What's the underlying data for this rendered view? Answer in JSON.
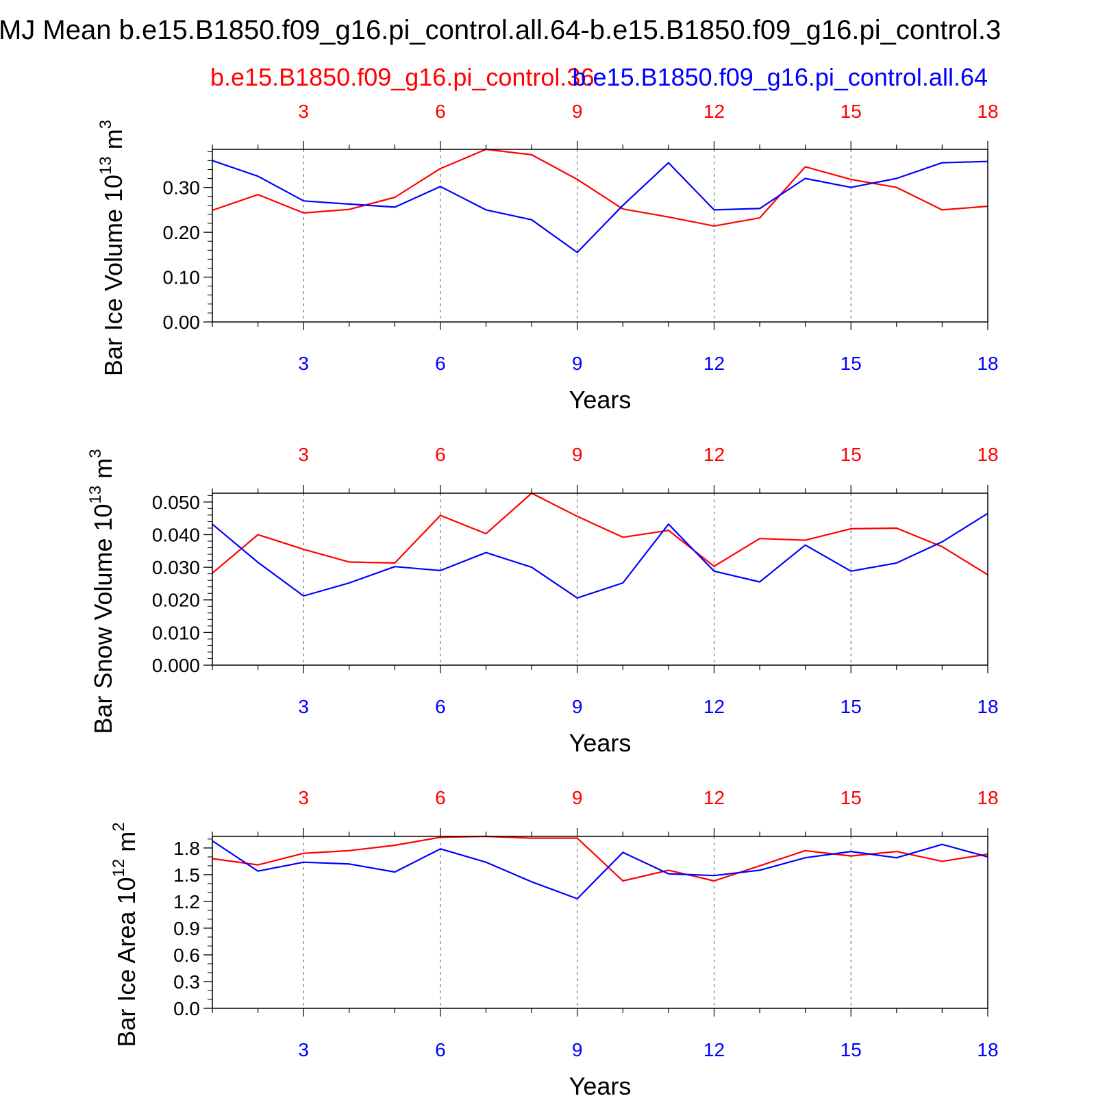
{
  "figure": {
    "title": "MJ Mean b.e15.B1850.f09_g16.pi_control.all.64-b.e15.B1850.f09_g16.pi_control.3",
    "legend": {
      "red_label": "b.e15.B1850.f09_g16.pi_control.36",
      "blue_label": "b.e15.B1850.f09_g16.pi_control.all.64"
    }
  },
  "chart_data": [
    {
      "type": "line",
      "ylabel_prefix": "Bar Ice Volume 10",
      "ylabel_exp": "13",
      "ylabel_unit": " m",
      "ylabel_unit_exp": "3",
      "xlabel": "Years",
      "xlim": [
        1,
        18
      ],
      "ylim": [
        0,
        0.385
      ],
      "xticks": [
        3,
        6,
        9,
        12,
        15,
        18
      ],
      "yticks": [
        0,
        0.1,
        0.2,
        0.3
      ],
      "ytick_labels": [
        "0.00",
        "0.10",
        "0.20",
        "0.30"
      ],
      "yminor_step": 0.02,
      "grid": "vertical dashed at major x ticks",
      "x": [
        1,
        2,
        3,
        4,
        5,
        6,
        7,
        8,
        9,
        10,
        11,
        12,
        13,
        14,
        15,
        16,
        17,
        18
      ],
      "series": [
        {
          "name": "b.e15.B1850.f09_g16.pi_control.36",
          "color": "#ff0000",
          "values": [
            0.249,
            0.284,
            0.243,
            0.251,
            0.278,
            0.342,
            0.385,
            0.373,
            0.318,
            0.252,
            0.234,
            0.214,
            0.232,
            0.346,
            0.318,
            0.3,
            0.25,
            0.258
          ]
        },
        {
          "name": "b.e15.B1850.f09_g16.pi_control.all.64",
          "color": "#0000ff",
          "values": [
            0.36,
            0.325,
            0.27,
            0.263,
            0.256,
            0.302,
            0.25,
            0.228,
            0.155,
            0.26,
            0.355,
            0.25,
            0.253,
            0.32,
            0.3,
            0.32,
            0.355,
            0.358
          ]
        }
      ]
    },
    {
      "type": "line",
      "ylabel_prefix": "Bar Snow Volume 10",
      "ylabel_exp": "13",
      "ylabel_unit": " m",
      "ylabel_unit_exp": "3",
      "xlabel": "Years",
      "xlim": [
        1,
        18
      ],
      "ylim": [
        0,
        0.0527
      ],
      "xticks": [
        3,
        6,
        9,
        12,
        15,
        18
      ],
      "yticks": [
        0,
        0.01,
        0.02,
        0.03,
        0.04,
        0.05
      ],
      "ytick_labels": [
        "0.000",
        "0.010",
        "0.020",
        "0.030",
        "0.040",
        "0.050"
      ],
      "yminor_step": 0.002,
      "grid": "vertical dashed at major x ticks",
      "x": [
        1,
        2,
        3,
        4,
        5,
        6,
        7,
        8,
        9,
        10,
        11,
        12,
        13,
        14,
        15,
        16,
        17,
        18
      ],
      "series": [
        {
          "name": "b.e15.B1850.f09_g16.pi_control.36",
          "color": "#ff0000",
          "values": [
            0.0282,
            0.04,
            0.0355,
            0.0316,
            0.0313,
            0.0459,
            0.0403,
            0.0527,
            0.0456,
            0.0392,
            0.0413,
            0.0303,
            0.0388,
            0.0383,
            0.0418,
            0.042,
            0.0363,
            0.0277
          ]
        },
        {
          "name": "b.e15.B1850.f09_g16.pi_control.all.64",
          "color": "#0000ff",
          "values": [
            0.0432,
            0.0315,
            0.0212,
            0.0252,
            0.0302,
            0.029,
            0.0345,
            0.03,
            0.0206,
            0.0252,
            0.0432,
            0.0288,
            0.0255,
            0.0368,
            0.0288,
            0.0313,
            0.0378,
            0.0465
          ]
        }
      ]
    },
    {
      "type": "line",
      "ylabel_prefix": "Bar Ice Area 10",
      "ylabel_exp": "12",
      "ylabel_unit": " m",
      "ylabel_unit_exp": "2",
      "xlabel": "Years",
      "xlim": [
        1,
        18
      ],
      "ylim": [
        0,
        1.93
      ],
      "xticks": [
        3,
        6,
        9,
        12,
        15,
        18
      ],
      "yticks": [
        0,
        0.3,
        0.6,
        0.9,
        1.2,
        1.5,
        1.8
      ],
      "ytick_labels": [
        "0.0",
        "0.3",
        "0.6",
        "0.9",
        "1.2",
        "1.5",
        "1.8"
      ],
      "yminor_step": 0.1,
      "grid": "vertical dashed at major x ticks",
      "x": [
        1,
        2,
        3,
        4,
        5,
        6,
        7,
        8,
        9,
        10,
        11,
        12,
        13,
        14,
        15,
        16,
        17,
        18
      ],
      "series": [
        {
          "name": "b.e15.B1850.f09_g16.pi_control.36",
          "color": "#ff0000",
          "values": [
            1.68,
            1.61,
            1.74,
            1.77,
            1.83,
            1.92,
            1.93,
            1.91,
            1.91,
            1.43,
            1.55,
            1.43,
            1.6,
            1.77,
            1.71,
            1.76,
            1.65,
            1.73
          ]
        },
        {
          "name": "b.e15.B1850.f09_g16.pi_control.all.64",
          "color": "#0000ff",
          "values": [
            1.88,
            1.54,
            1.64,
            1.62,
            1.53,
            1.79,
            1.64,
            1.42,
            1.23,
            1.75,
            1.51,
            1.49,
            1.55,
            1.69,
            1.76,
            1.69,
            1.84,
            1.7
          ]
        }
      ]
    }
  ]
}
